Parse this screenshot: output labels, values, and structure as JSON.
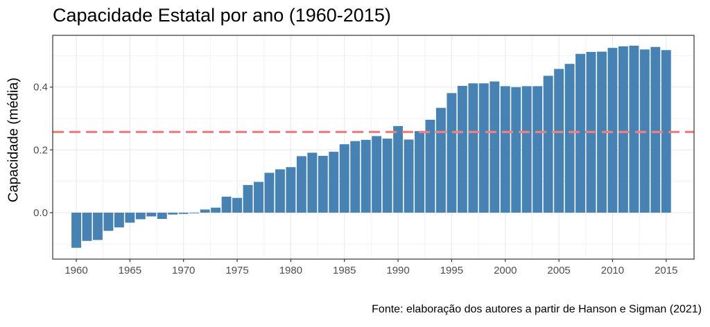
{
  "chart_data": {
    "type": "bar",
    "title": "Capacidade Estatal por ano (1960-2015)",
    "xlabel": "",
    "ylabel": "Capacidade (média)",
    "caption": "Fonte: elaboração dos autores a partir de Hanson e Sigman (2021)",
    "x": [
      1960,
      1961,
      1962,
      1963,
      1964,
      1965,
      1966,
      1967,
      1968,
      1969,
      1970,
      1971,
      1972,
      1973,
      1974,
      1975,
      1976,
      1977,
      1978,
      1979,
      1980,
      1981,
      1982,
      1983,
      1984,
      1985,
      1986,
      1987,
      1988,
      1989,
      1990,
      1991,
      1992,
      1993,
      1994,
      1995,
      1996,
      1997,
      1998,
      1999,
      2000,
      2001,
      2002,
      2003,
      2004,
      2005,
      2006,
      2007,
      2008,
      2009,
      2010,
      2011,
      2012,
      2013,
      2014,
      2015
    ],
    "values": [
      -0.112,
      -0.09,
      -0.087,
      -0.058,
      -0.047,
      -0.032,
      -0.021,
      -0.012,
      -0.02,
      -0.006,
      -0.004,
      -0.002,
      0.01,
      0.016,
      0.051,
      0.047,
      0.088,
      0.098,
      0.127,
      0.138,
      0.145,
      0.18,
      0.191,
      0.181,
      0.194,
      0.218,
      0.228,
      0.232,
      0.244,
      0.236,
      0.276,
      0.233,
      0.26,
      0.296,
      0.334,
      0.381,
      0.404,
      0.412,
      0.412,
      0.418,
      0.403,
      0.4,
      0.403,
      0.403,
      0.436,
      0.458,
      0.474,
      0.506,
      0.512,
      0.513,
      0.525,
      0.53,
      0.532,
      0.52,
      0.528,
      0.518
    ],
    "reference_line": {
      "y": 0.257,
      "style": "dashed",
      "color": "#f08080"
    },
    "xticks": [
      1960,
      1965,
      1970,
      1975,
      1980,
      1985,
      1990,
      1995,
      2000,
      2005,
      2010,
      2015
    ],
    "yticks": [
      0.0,
      0.2,
      0.4
    ],
    "ytick_labels": [
      "0.0",
      "0.2",
      "0.4"
    ],
    "xlim": [
      1957.8,
      2017.6
    ],
    "ylim": [
      -0.148,
      0.565
    ],
    "bar_color": "#4682b4",
    "grid": true,
    "legend": "none"
  }
}
